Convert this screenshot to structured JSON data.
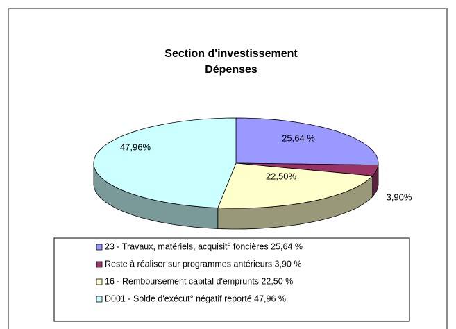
{
  "chart_data": {
    "type": "pie3d",
    "title": "Section d'investissement",
    "subtitle": "Dépenses",
    "categories": [
      "23 - Travaux, matériels, acquisit° foncières 25,64 %",
      "Reste  à réaliser sur programmes antérieurs 3,90 %",
      "16 - Remboursement capital d'emprunts 22,50 %",
      "D001 - Solde d'exécut° négatif reporté 47,96 %"
    ],
    "values": [
      25.64,
      3.9,
      22.5,
      47.96
    ],
    "value_labels": [
      "25,64 %",
      "3,90%",
      "22,50%",
      "47,96%"
    ],
    "colors": [
      "#9999ff",
      "#993366",
      "#ffffcc",
      "#ccffff"
    ],
    "legend": "bottom"
  }
}
